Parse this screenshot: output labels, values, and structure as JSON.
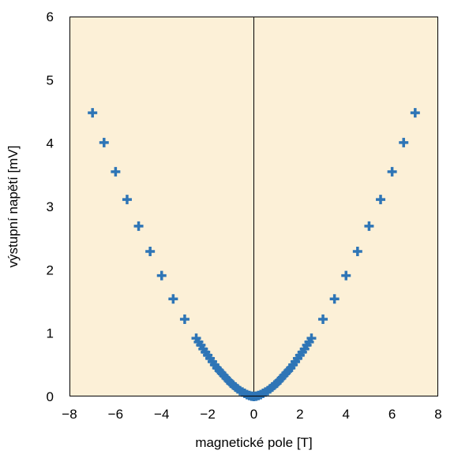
{
  "chart_data": {
    "type": "scatter",
    "title": "",
    "xlabel": "magnetické pole [T]",
    "ylabel": "výstupní napětí [mV]",
    "xlim": [
      -8,
      8
    ],
    "ylim": [
      0,
      6
    ],
    "xticks": [
      -8,
      -6,
      -4,
      -2,
      0,
      2,
      4,
      6,
      8
    ],
    "yticks": [
      0,
      1,
      2,
      3,
      4,
      5,
      6
    ],
    "xtick_labels": [
      "−8",
      "−6",
      "−4",
      "−2",
      "0",
      "2",
      "4",
      "6",
      "8"
    ],
    "ytick_labels": [
      "0",
      "1",
      "2",
      "3",
      "4",
      "5",
      "6"
    ],
    "grid": false,
    "legend": "none",
    "marker": "plus",
    "colors": {
      "plot_background": "#fcf0d7",
      "series": "#2e75b6",
      "zero_line": "#000000",
      "frame": "#000000"
    },
    "series": [
      {
        "x": [
          -7.0,
          -6.5,
          -6.0,
          -5.5,
          -5.0,
          -4.5,
          -4.0,
          -3.5,
          -3.0,
          -2.5,
          -2.4,
          -2.3,
          -2.2,
          -2.1,
          -2.0,
          -1.9,
          -1.8,
          -1.7,
          -1.6,
          -1.5,
          -1.4,
          -1.3,
          -1.2,
          -1.1,
          -1.0,
          -0.9,
          -0.8,
          -0.7,
          -0.6,
          -0.5,
          -0.4,
          -0.3,
          -0.2,
          -0.1,
          0.0,
          0.1,
          0.2,
          0.3,
          0.4,
          0.5,
          0.6,
          0.7,
          0.8,
          0.9,
          1.0,
          1.1,
          1.2,
          1.3,
          1.4,
          1.5,
          1.6,
          1.7,
          1.8,
          1.9,
          2.0,
          2.1,
          2.2,
          2.3,
          2.4,
          2.5,
          3.0,
          3.5,
          4.0,
          4.5,
          5.0,
          5.5,
          6.0,
          6.5,
          7.0
        ],
        "y": [
          4.48,
          4.01,
          3.55,
          3.11,
          2.69,
          2.29,
          1.91,
          1.54,
          1.22,
          0.92,
          0.86,
          0.81,
          0.75,
          0.7,
          0.65,
          0.6,
          0.55,
          0.5,
          0.45,
          0.41,
          0.37,
          0.33,
          0.29,
          0.25,
          0.21,
          0.18,
          0.15,
          0.12,
          0.09,
          0.07,
          0.05,
          0.03,
          0.015,
          0.005,
          0.0,
          0.005,
          0.015,
          0.03,
          0.05,
          0.07,
          0.09,
          0.12,
          0.15,
          0.18,
          0.21,
          0.25,
          0.29,
          0.33,
          0.37,
          0.41,
          0.45,
          0.5,
          0.55,
          0.6,
          0.65,
          0.7,
          0.75,
          0.81,
          0.86,
          0.92,
          1.22,
          1.54,
          1.91,
          2.29,
          2.69,
          3.11,
          3.55,
          4.01,
          4.48
        ]
      }
    ]
  }
}
